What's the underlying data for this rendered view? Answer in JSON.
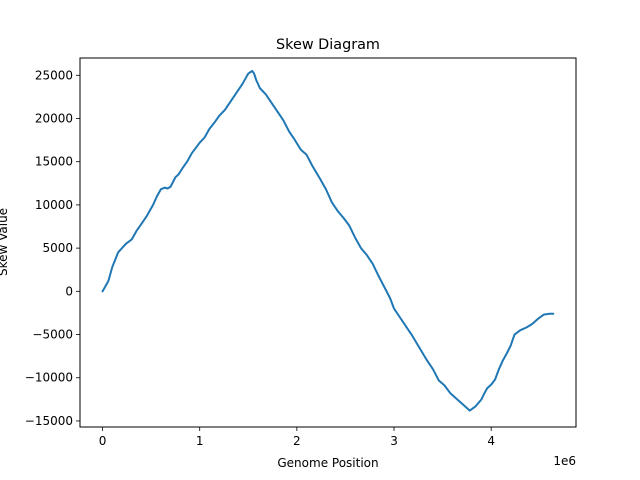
{
  "chart_data": {
    "type": "line",
    "title": "Skew Diagram",
    "xlabel": "Genome Position",
    "ylabel": "Skew Value",
    "x_offset_text": "1e6",
    "xlim": [
      -232000,
      4873000
    ],
    "ylim": [
      -15700,
      27000
    ],
    "x_ticks": [
      0,
      1000000,
      2000000,
      3000000,
      4000000
    ],
    "x_tick_labels": [
      "0",
      "1",
      "2",
      "3",
      "4"
    ],
    "y_ticks": [
      -15000,
      -10000,
      -5000,
      0,
      5000,
      10000,
      15000,
      20000,
      25000
    ],
    "y_tick_labels": [
      "−15000",
      "−10000",
      "−5000",
      "0",
      "5000",
      "10000",
      "15000",
      "20000",
      "25000"
    ],
    "grid": false,
    "legend": "none",
    "series": [
      {
        "color": "#1f77b4",
        "x": [
          0,
          60000,
          100000,
          160000,
          240000,
          300000,
          350000,
          400000,
          460000,
          520000,
          560000,
          600000,
          640000,
          670000,
          700000,
          750000,
          780000,
          820000,
          870000,
          920000,
          1000000,
          1050000,
          1100000,
          1150000,
          1200000,
          1260000,
          1320000,
          1380000,
          1440000,
          1500000,
          1540000,
          1560000,
          1580000,
          1620000,
          1680000,
          1740000,
          1800000,
          1860000,
          1920000,
          1980000,
          2040000,
          2100000,
          2160000,
          2240000,
          2300000,
          2360000,
          2420000,
          2480000,
          2540000,
          2600000,
          2660000,
          2720000,
          2780000,
          2840000,
          2900000,
          2960000,
          3000000,
          3060000,
          3120000,
          3180000,
          3260000,
          3340000,
          3400000,
          3460000,
          3520000,
          3580000,
          3650000,
          3720000,
          3780000,
          3840000,
          3900000,
          3930000,
          3960000,
          4000000,
          4040000,
          4080000,
          4120000,
          4160000,
          4200000,
          4240000,
          4300000,
          4360000,
          4420000,
          4480000,
          4540000,
          4600000,
          4640000
        ],
        "y": [
          0,
          1200,
          2800,
          4500,
          5500,
          6000,
          7000,
          7800,
          8800,
          10000,
          11000,
          11800,
          12000,
          11900,
          12100,
          13200,
          13500,
          14200,
          15000,
          16000,
          17200,
          17800,
          18800,
          19500,
          20300,
          21000,
          22000,
          23000,
          24000,
          25200,
          25500,
          25200,
          24500,
          23500,
          22800,
          21800,
          20800,
          19800,
          18500,
          17500,
          16400,
          15800,
          14500,
          13000,
          11800,
          10300,
          9300,
          8500,
          7600,
          6200,
          5000,
          4200,
          3200,
          1800,
          500,
          -800,
          -2000,
          -3000,
          -4000,
          -5000,
          -6500,
          -8000,
          -9000,
          -10300,
          -10900,
          -11800,
          -12500,
          -13200,
          -13800,
          -13300,
          -12500,
          -11800,
          -11200,
          -10800,
          -10200,
          -9000,
          -8000,
          -7200,
          -6300,
          -5000,
          -4500,
          -4200,
          -3800,
          -3200,
          -2700,
          -2600,
          -2600
        ]
      }
    ]
  }
}
